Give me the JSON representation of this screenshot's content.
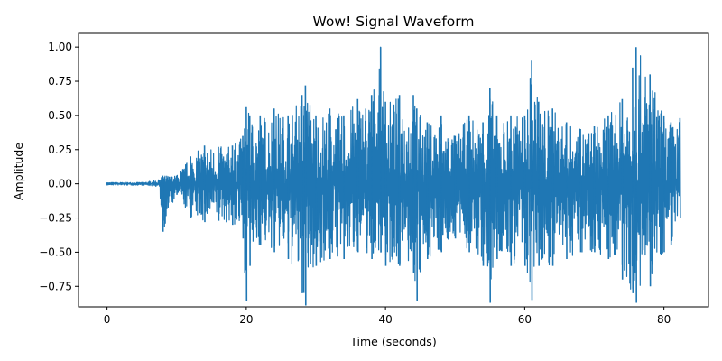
{
  "chart_data": {
    "type": "line",
    "title": "Wow! Signal Waveform",
    "xlabel": "Time (seconds)",
    "ylabel": "Amplitude",
    "xlim": [
      -4.1,
      86.4
    ],
    "ylim": [
      -0.9,
      1.1
    ],
    "x_ticks": [
      0,
      20,
      40,
      60,
      80
    ],
    "x_tick_labels": [
      "0",
      "20",
      "40",
      "60",
      "80"
    ],
    "y_ticks": [
      -0.75,
      -0.5,
      -0.25,
      0.0,
      0.25,
      0.5,
      0.75,
      1.0
    ],
    "y_tick_labels": [
      "−0.75",
      "−0.50",
      "−0.25",
      "0.00",
      "0.25",
      "0.50",
      "0.75",
      "1.00"
    ],
    "grid": false,
    "legend": "none",
    "line_color": "#1f77b4",
    "series": [
      {
        "color": "#1f77b4",
        "envelope": {
          "description_free_points": true,
          "x": [
            0,
            2,
            5,
            7.5,
            8,
            10,
            12,
            14,
            16,
            18,
            19.5,
            20,
            20.5,
            22,
            24,
            26,
            28,
            28.5,
            30,
            32,
            34,
            36,
            38,
            39.3,
            40,
            42,
            44,
            44.5,
            46,
            48,
            50,
            52,
            54,
            55,
            56,
            58,
            60,
            61,
            62,
            64,
            66,
            68,
            70,
            72,
            74,
            75.5,
            76,
            78,
            80,
            81,
            82.3
          ],
          "upper": [
            0.01,
            0.01,
            0.01,
            0.03,
            0.06,
            0.06,
            0.2,
            0.28,
            0.27,
            0.28,
            0.35,
            0.56,
            0.5,
            0.5,
            0.55,
            0.5,
            0.65,
            0.72,
            0.5,
            0.55,
            0.5,
            0.62,
            0.65,
            1.0,
            0.6,
            0.65,
            0.65,
            0.55,
            0.45,
            0.5,
            0.35,
            0.5,
            0.45,
            0.7,
            0.5,
            0.5,
            0.5,
            0.9,
            0.6,
            0.55,
            0.45,
            0.4,
            0.42,
            0.5,
            0.62,
            0.85,
            1.0,
            0.8,
            0.5,
            0.45,
            0.48
          ],
          "lower": [
            -0.01,
            -0.01,
            -0.01,
            -0.02,
            -0.35,
            -0.08,
            -0.25,
            -0.28,
            -0.27,
            -0.3,
            -0.4,
            -0.86,
            -0.6,
            -0.45,
            -0.5,
            -0.55,
            -0.8,
            -0.89,
            -0.6,
            -0.55,
            -0.55,
            -0.5,
            -0.55,
            -0.5,
            -0.6,
            -0.6,
            -0.65,
            -0.86,
            -0.55,
            -0.5,
            -0.4,
            -0.5,
            -0.6,
            -0.87,
            -0.55,
            -0.6,
            -0.6,
            -0.85,
            -0.6,
            -0.6,
            -0.55,
            -0.5,
            -0.5,
            -0.55,
            -0.7,
            -0.8,
            -0.87,
            -0.75,
            -0.5,
            -0.45,
            -0.25
          ]
        }
      }
    ]
  }
}
